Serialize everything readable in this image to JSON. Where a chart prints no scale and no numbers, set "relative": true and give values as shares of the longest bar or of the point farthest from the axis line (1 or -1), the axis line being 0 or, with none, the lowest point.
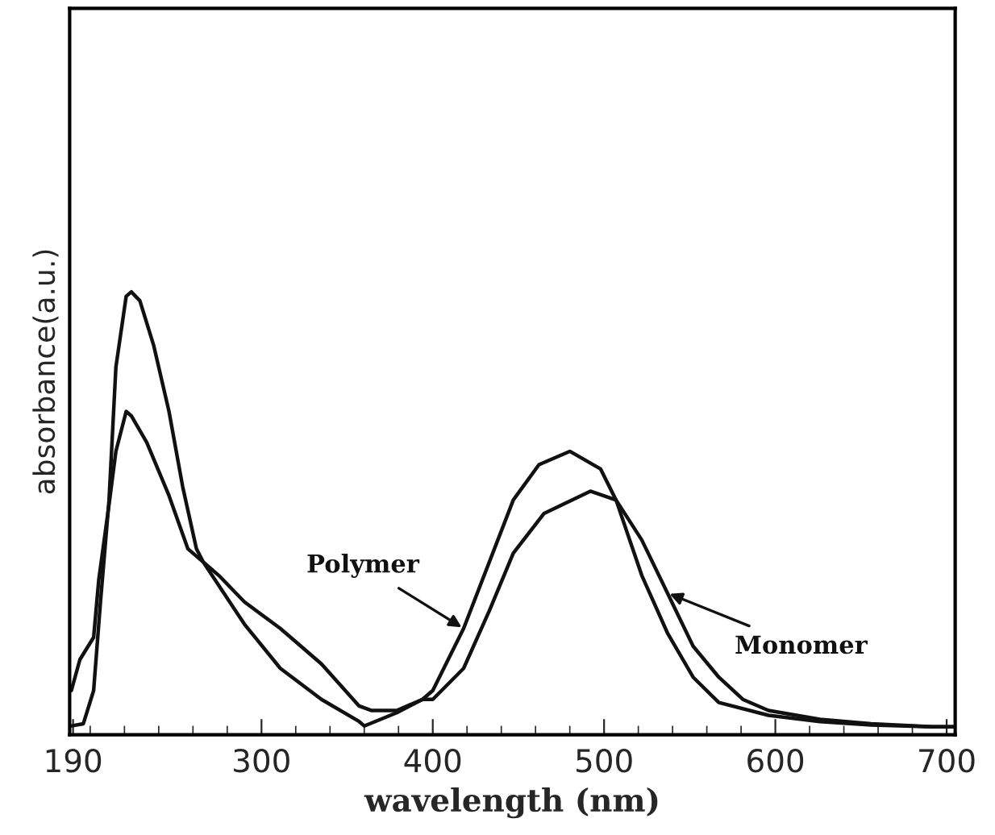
{
  "chart_data": {
    "type": "line",
    "relative": true,
    "xlabel": "wavelength (nm)",
    "ylabel": "absorbance(a.u.)",
    "xlim": [
      188,
      705
    ],
    "xticks": [
      190,
      300,
      400,
      500,
      600,
      700
    ],
    "grid": false,
    "legend": false,
    "marker": "none",
    "line_style": "solid",
    "series": [
      {
        "name": "Polymer",
        "color": "#111111",
        "x": [
          189,
          196,
          202,
          206,
          211,
          215,
          221,
          224,
          229,
          237,
          246,
          254,
          262,
          266,
          290,
          311,
          335,
          357,
          360,
          379,
          394,
          400,
          418,
          447,
          462,
          480,
          498,
          507,
          522,
          537,
          552,
          567,
          596,
          626,
          656,
          692,
          705
        ],
        "values": [
          0.02,
          0.025,
          0.1,
          0.3,
          0.53,
          0.83,
          0.99,
          1.0,
          0.98,
          0.88,
          0.73,
          0.56,
          0.42,
          0.39,
          0.25,
          0.15,
          0.08,
          0.03,
          0.02,
          0.05,
          0.08,
          0.1,
          0.24,
          0.53,
          0.61,
          0.64,
          0.6,
          0.53,
          0.36,
          0.23,
          0.13,
          0.073,
          0.044,
          0.03,
          0.022,
          0.018,
          0.018
        ]
      },
      {
        "name": "Monomer",
        "color": "#111111",
        "x": [
          189,
          194,
          202,
          205,
          211,
          215,
          221,
          224,
          233,
          246,
          257,
          266,
          275,
          290,
          311,
          335,
          357,
          364,
          379,
          394,
          400,
          418,
          433,
          447,
          465,
          492,
          507,
          522,
          537,
          552,
          567,
          581,
          596,
          626,
          656,
          692,
          705
        ],
        "values": [
          0.1,
          0.17,
          0.22,
          0.35,
          0.52,
          0.64,
          0.73,
          0.72,
          0.66,
          0.54,
          0.42,
          0.39,
          0.36,
          0.3,
          0.24,
          0.16,
          0.065,
          0.055,
          0.055,
          0.08,
          0.08,
          0.15,
          0.28,
          0.41,
          0.5,
          0.55,
          0.53,
          0.44,
          0.32,
          0.2,
          0.13,
          0.08,
          0.055,
          0.035,
          0.025,
          0.018,
          0.018
        ]
      }
    ]
  }
}
